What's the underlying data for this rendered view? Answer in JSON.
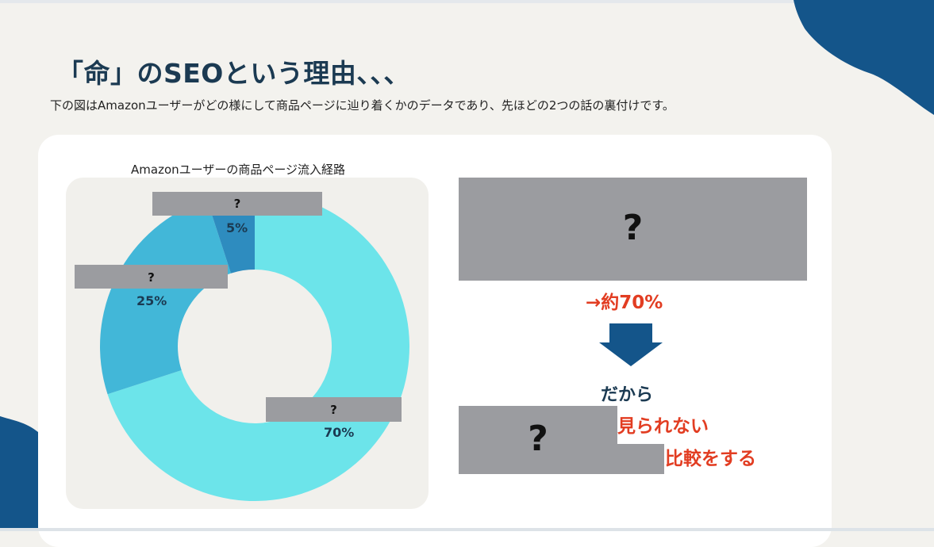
{
  "slide": {
    "title": "「命」のSEOという理由、、、",
    "subtitle": "下の図はAmazonユーザーがどの様にして商品ページに辿り着くかのデータであり、先ほどの2つの話の裏付けです。"
  },
  "chart_data": {
    "type": "pie",
    "title": "Amazonユーザーの商品ページ流入経路",
    "categories": [
      "?",
      "?",
      "?"
    ],
    "values": [
      70,
      25,
      5
    ],
    "data_labels": [
      "70%",
      "25%",
      "5%"
    ],
    "colors": [
      "#6ce4ea",
      "#42b7d8",
      "#2e8cbf"
    ]
  },
  "right_panel": {
    "box_top_label": "?",
    "result_text": "→約70%",
    "therefore_text": "だから",
    "box_bottom_label": "?",
    "line1": "見られない",
    "line2": "比較をする",
    "arrow_color": "#14558a"
  },
  "colors": {
    "accent_blue": "#14558a",
    "highlight_red": "#e23d22",
    "title_navy": "#1b3a52",
    "placeholder_gray": "#9b9ca0"
  }
}
